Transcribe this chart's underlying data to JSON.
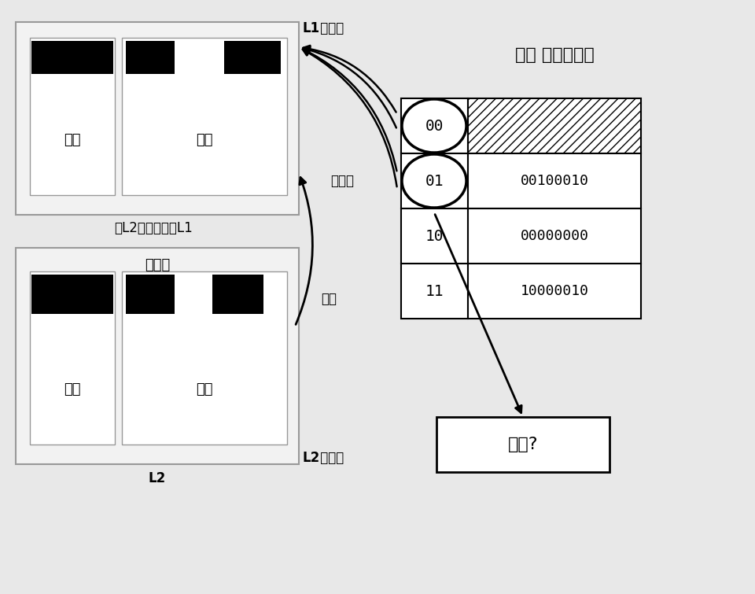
{
  "l1_label_bold": "L1",
  "l1_label_normal": " 级缓存",
  "l2_label_bold": "L2",
  "l2_label_normal": " 级缓存",
  "tag_label": "标签",
  "data_label": "数据",
  "cache_line_label": "缓存线",
  "read_label": "从L2读取数据到L1",
  "miss_label": "不命中",
  "hit_label": "命中",
  "table_title": "索引 数据模式码",
  "compare_label": "比较?",
  "index_col": [
    "00",
    "01",
    "10",
    "11"
  ],
  "data_col": [
    "",
    "00100010",
    "00000000",
    "10000010"
  ],
  "hatched_row": 0,
  "circled_rows": [
    0,
    1
  ],
  "bg_color": "#e8e8e8"
}
